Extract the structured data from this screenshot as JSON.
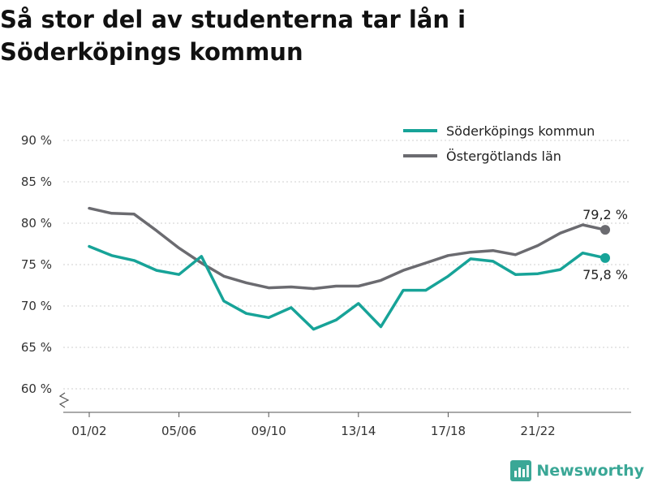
{
  "title": "Så stor del av studenterna tar lån i Söderköpings kommun",
  "brand": {
    "name": "Newsworthy",
    "logo_icon": "newsworthy-logo-icon",
    "accent": "#3aa796"
  },
  "chart_data": {
    "type": "line",
    "title": "Så stor del av studenterna tar lån i Söderköpings kommun",
    "xlabel": "",
    "ylabel": "",
    "ylim": [
      60,
      90
    ],
    "yticks": [
      "60 %",
      "65 %",
      "70 %",
      "75 %",
      "80 %",
      "85 %",
      "90 %"
    ],
    "ytick_values": [
      60,
      65,
      70,
      75,
      80,
      85,
      90
    ],
    "y_axis_broken": true,
    "grid": "horizontal",
    "legend": "top-right",
    "x": [
      "01/02",
      "02/03",
      "03/04",
      "04/05",
      "05/06",
      "06/07",
      "07/08",
      "08/09",
      "09/10",
      "10/11",
      "11/12",
      "12/13",
      "13/14",
      "14/15",
      "15/16",
      "16/17",
      "17/18",
      "18/19",
      "19/20",
      "20/21",
      "21/22",
      "22/23",
      "23/24",
      "24/25"
    ],
    "xticks": [
      "01/02",
      "05/06",
      "09/10",
      "13/14",
      "17/18",
      "21/22"
    ],
    "series": [
      {
        "name": "Söderköpings kommun",
        "color": "#17a398",
        "values": [
          77.2,
          76.1,
          75.5,
          74.3,
          73.8,
          76.0,
          70.6,
          69.1,
          68.6,
          69.8,
          67.2,
          68.3,
          70.3,
          67.5,
          71.9,
          71.9,
          73.6,
          75.7,
          75.4,
          73.8,
          73.9,
          74.4,
          76.4,
          75.8
        ],
        "end_label": "75,8 %"
      },
      {
        "name": "Östergötlands län",
        "color": "#6b6b70",
        "values": [
          81.8,
          81.2,
          81.1,
          79.1,
          77.0,
          75.2,
          73.6,
          72.8,
          72.2,
          72.3,
          72.1,
          72.4,
          72.4,
          73.1,
          74.3,
          75.2,
          76.1,
          76.5,
          76.7,
          76.2,
          77.3,
          78.8,
          79.8,
          79.2
        ],
        "end_label": "79,2 %"
      }
    ]
  }
}
